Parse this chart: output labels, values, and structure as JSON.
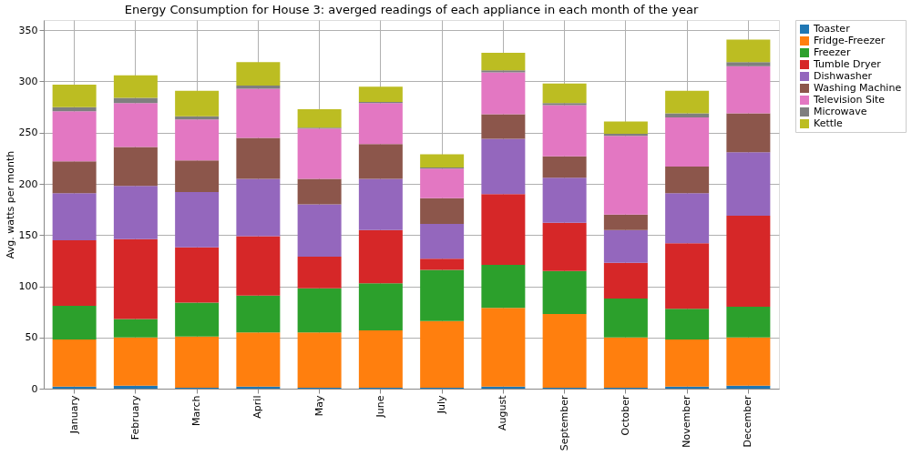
{
  "chart_data": {
    "type": "bar",
    "stacked": true,
    "title": "Energy Consumption for House 3: averged readings of each appliance in each month of the year",
    "ylabel": "Avg. watts per month",
    "categories": [
      "January",
      "February",
      "March",
      "April",
      "May",
      "June",
      "July",
      "August",
      "September",
      "October",
      "November",
      "December"
    ],
    "series": [
      {
        "name": "Toaster",
        "color": "#1f77b4",
        "values": [
          2,
          3,
          1,
          2,
          1,
          1,
          1,
          2,
          1,
          1,
          2,
          3
        ]
      },
      {
        "name": "Fridge-Freezer",
        "color": "#ff7f0e",
        "values": [
          46,
          47,
          50,
          53,
          54,
          56,
          65,
          77,
          72,
          49,
          46,
          47
        ]
      },
      {
        "name": "Freezer",
        "color": "#2ca02c",
        "values": [
          33,
          18,
          33,
          36,
          43,
          46,
          50,
          42,
          42,
          38,
          30,
          30
        ]
      },
      {
        "name": "Tumble Dryer",
        "color": "#d62728",
        "values": [
          64,
          78,
          54,
          58,
          31,
          52,
          11,
          69,
          47,
          35,
          64,
          89
        ]
      },
      {
        "name": "Dishwasher",
        "color": "#9467bd",
        "values": [
          46,
          52,
          54,
          56,
          51,
          50,
          34,
          54,
          44,
          32,
          49,
          62
        ]
      },
      {
        "name": "Washing Machine",
        "color": "#8c564b",
        "values": [
          31,
          38,
          31,
          40,
          25,
          34,
          25,
          24,
          21,
          15,
          26,
          38
        ]
      },
      {
        "name": "Television Site",
        "color": "#e377c2",
        "values": [
          49,
          43,
          40,
          48,
          49,
          40,
          29,
          41,
          50,
          77,
          48,
          46
        ]
      },
      {
        "name": "Microwave",
        "color": "#7f7f7f",
        "values": [
          4,
          5,
          3,
          3,
          1,
          1,
          1,
          2,
          2,
          2,
          4,
          4
        ]
      },
      {
        "name": "Kettle",
        "color": "#bcbd22",
        "values": [
          22,
          22,
          25,
          23,
          18,
          15,
          13,
          17,
          19,
          12,
          22,
          22
        ]
      }
    ],
    "ylim": [
      0,
      360
    ],
    "yticks": [
      0,
      50,
      100,
      150,
      200,
      250,
      300,
      350
    ],
    "grid": true,
    "legend": "top right"
  }
}
